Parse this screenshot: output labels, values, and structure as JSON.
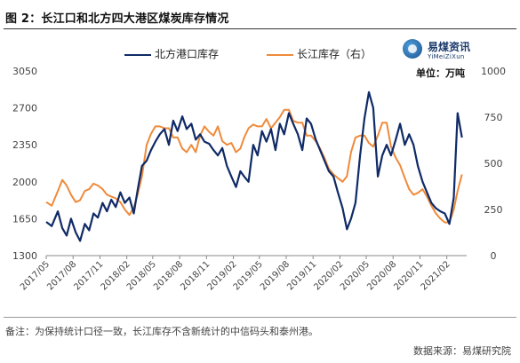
{
  "header": {
    "title": "图 2：长江口和北方四大港区煤炭库存情况"
  },
  "logo": {
    "name_cn": "易煤资讯",
    "name_en": "YiMeiZiXun"
  },
  "unit_label": "单位：万吨",
  "footer": {
    "note": "备注：为保持统计口径一致，长江库存不含新统计的中信码头和泰州港。",
    "source": "数据来源：易煤研究院"
  },
  "colors": {
    "north": "#0f2a66",
    "yangtze": "#ef8a3a"
  },
  "chart_data": {
    "type": "line",
    "x_tick_labels": [
      "2017/05",
      "2017/08",
      "2017/11",
      "2018/02",
      "2018/05",
      "2018/08",
      "2018/11",
      "2019/02",
      "2019/05",
      "2019/08",
      "2019/11",
      "2020/02",
      "2020/05",
      "2020/08",
      "2020/11",
      "2021/02"
    ],
    "y_left": {
      "min": 1300,
      "max": 3050,
      "ticks": [
        1300,
        1650,
        2000,
        2350,
        2700,
        3050
      ]
    },
    "y_right": {
      "min": 0,
      "max": 1000,
      "ticks": [
        0,
        250,
        500,
        750,
        1000
      ]
    },
    "legend_position": "top-left",
    "series": [
      {
        "name": "北方港口库存",
        "axis": "left",
        "x": [
          "2017-05-01",
          "2017-05-20",
          "2017-06-10",
          "2017-06-25",
          "2017-07-10",
          "2017-07-25",
          "2017-08-10",
          "2017-08-25",
          "2017-09-10",
          "2017-09-25",
          "2017-10-10",
          "2017-10-25",
          "2017-11-10",
          "2017-11-25",
          "2017-12-10",
          "2017-12-25",
          "2018-01-10",
          "2018-01-25",
          "2018-02-10",
          "2018-02-25",
          "2018-03-10",
          "2018-03-25",
          "2018-04-10",
          "2018-04-25",
          "2018-05-10",
          "2018-05-25",
          "2018-06-10",
          "2018-06-25",
          "2018-07-10",
          "2018-07-25",
          "2018-08-10",
          "2018-08-25",
          "2018-09-10",
          "2018-09-25",
          "2018-10-10",
          "2018-10-25",
          "2018-11-10",
          "2018-11-25",
          "2018-12-10",
          "2018-12-25",
          "2019-01-10",
          "2019-01-25",
          "2019-02-10",
          "2019-02-25",
          "2019-03-10",
          "2019-03-25",
          "2019-04-10",
          "2019-04-25",
          "2019-05-10",
          "2019-05-25",
          "2019-06-10",
          "2019-06-25",
          "2019-07-10",
          "2019-07-25",
          "2019-08-10",
          "2019-08-25",
          "2019-09-10",
          "2019-09-25",
          "2019-10-10",
          "2019-10-25",
          "2019-11-10",
          "2019-11-25",
          "2019-12-10",
          "2019-12-25",
          "2020-01-10",
          "2020-01-25",
          "2020-02-10",
          "2020-02-25",
          "2020-03-10",
          "2020-03-25",
          "2020-04-10",
          "2020-04-25",
          "2020-05-10",
          "2020-05-25",
          "2020-06-10",
          "2020-06-25",
          "2020-07-10",
          "2020-07-25",
          "2020-08-10",
          "2020-08-25",
          "2020-09-10",
          "2020-09-25",
          "2020-10-10",
          "2020-10-25",
          "2020-11-10",
          "2020-11-25",
          "2020-12-10",
          "2020-12-25",
          "2021-01-10",
          "2021-01-25",
          "2021-02-10",
          "2021-02-25",
          "2021-03-10",
          "2021-03-25"
        ],
        "values": [
          1620,
          1580,
          1720,
          1560,
          1490,
          1650,
          1520,
          1440,
          1600,
          1540,
          1700,
          1660,
          1800,
          1720,
          1830,
          1760,
          1900,
          1800,
          1850,
          1700,
          1920,
          2150,
          2200,
          2300,
          2380,
          2450,
          2500,
          2350,
          2580,
          2480,
          2620,
          2500,
          2550,
          2400,
          2450,
          2380,
          2360,
          2300,
          2250,
          2320,
          2150,
          2050,
          1950,
          2100,
          2050,
          2000,
          2350,
          2250,
          2480,
          2380,
          2500,
          2300,
          2550,
          2450,
          2650,
          2550,
          2450,
          2300,
          2600,
          2550,
          2400,
          2300,
          2200,
          2100,
          2050,
          1900,
          1750,
          1550,
          1650,
          1800,
          2250,
          2600,
          2850,
          2700,
          2050,
          2250,
          2350,
          2250,
          2400,
          2550,
          2350,
          2450,
          2350,
          2150,
          2000,
          1900,
          1800,
          1750,
          1720,
          1700,
          1600,
          1850,
          2650,
          2420
        ]
      },
      {
        "name": "长江库存（右）",
        "axis": "right",
        "x": [
          "2017-05-01",
          "2017-05-20",
          "2017-06-10",
          "2017-06-25",
          "2017-07-10",
          "2017-07-25",
          "2017-08-10",
          "2017-08-25",
          "2017-09-10",
          "2017-09-25",
          "2017-10-10",
          "2017-10-25",
          "2017-11-10",
          "2017-11-25",
          "2017-12-10",
          "2017-12-25",
          "2018-01-10",
          "2018-01-25",
          "2018-02-10",
          "2018-02-25",
          "2018-03-10",
          "2018-03-25",
          "2018-04-10",
          "2018-04-25",
          "2018-05-10",
          "2018-05-25",
          "2018-06-10",
          "2018-06-25",
          "2018-07-10",
          "2018-07-25",
          "2018-08-10",
          "2018-08-25",
          "2018-09-10",
          "2018-09-25",
          "2018-10-10",
          "2018-10-25",
          "2018-11-10",
          "2018-11-25",
          "2018-12-10",
          "2018-12-25",
          "2019-01-10",
          "2019-01-25",
          "2019-02-10",
          "2019-02-25",
          "2019-03-10",
          "2019-03-25",
          "2019-04-10",
          "2019-04-25",
          "2019-05-10",
          "2019-05-25",
          "2019-06-10",
          "2019-06-25",
          "2019-07-10",
          "2019-07-25",
          "2019-08-10",
          "2019-08-25",
          "2019-09-10",
          "2019-09-25",
          "2019-10-10",
          "2019-10-25",
          "2019-11-10",
          "2019-11-25",
          "2019-12-10",
          "2019-12-25",
          "2020-01-10",
          "2020-01-25",
          "2020-02-10",
          "2020-02-25",
          "2020-03-10",
          "2020-03-25",
          "2020-04-10",
          "2020-04-25",
          "2020-05-10",
          "2020-05-25",
          "2020-06-10",
          "2020-06-25",
          "2020-07-10",
          "2020-07-25",
          "2020-08-10",
          "2020-08-25",
          "2020-09-10",
          "2020-09-25",
          "2020-10-10",
          "2020-10-25",
          "2020-11-10",
          "2020-11-25",
          "2020-12-10",
          "2020-12-25",
          "2021-01-10",
          "2021-01-25",
          "2021-02-10",
          "2021-02-25",
          "2021-03-10",
          "2021-03-25"
        ],
        "values": [
          290,
          270,
          350,
          410,
          380,
          330,
          290,
          300,
          350,
          360,
          390,
          380,
          360,
          330,
          320,
          310,
          290,
          250,
          220,
          260,
          330,
          430,
          600,
          660,
          700,
          700,
          690,
          690,
          640,
          640,
          580,
          560,
          600,
          560,
          650,
          700,
          670,
          650,
          700,
          620,
          600,
          610,
          560,
          580,
          640,
          690,
          710,
          700,
          700,
          740,
          690,
          720,
          750,
          790,
          790,
          730,
          720,
          720,
          650,
          650,
          620,
          580,
          530,
          470,
          440,
          420,
          400,
          430,
          560,
          640,
          650,
          650,
          610,
          590,
          650,
          720,
          720,
          590,
          530,
          490,
          420,
          360,
          330,
          340,
          360,
          320,
          270,
          230,
          200,
          180,
          180,
          250,
          350,
          440
        ]
      }
    ]
  }
}
